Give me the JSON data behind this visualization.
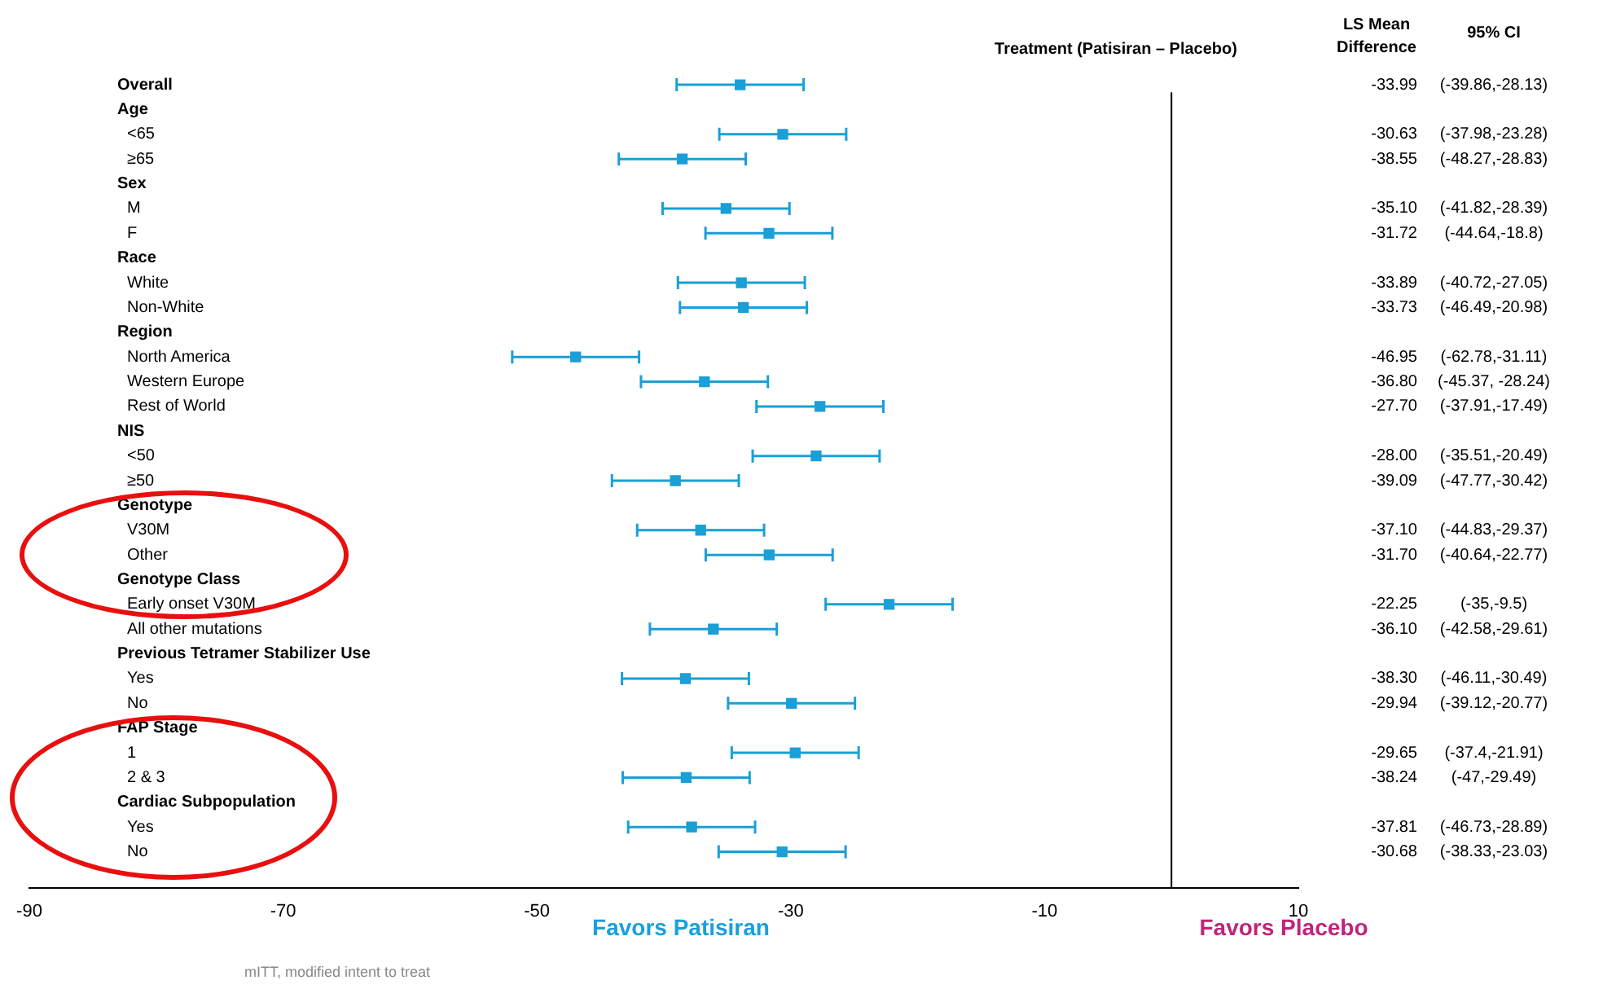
{
  "chart_data": {
    "type": "scatter",
    "orientation": "horizontal",
    "marker": "square",
    "color": "#1a9fd6",
    "legend": false,
    "grid": false,
    "categories": [
      "Overall",
      "Age",
      "<65",
      "≥65",
      "Sex",
      "M",
      "F",
      "Race",
      "White",
      "Non-White",
      "Region",
      "North America",
      "Western Europe",
      "Rest of World",
      "NIS",
      "<50",
      "≥50",
      "Genotype",
      "V30M",
      "Other",
      "Genotype Class",
      "Early onset V30M",
      "All other mutations",
      "Previous Tetramer Stabilizer Use",
      "Yes",
      "No",
      "FAP Stage",
      "1",
      "2 & 3",
      "Cardiac Subpopulation",
      "Yes",
      "No"
    ],
    "values": [
      -33.99,
      null,
      -30.63,
      -38.55,
      null,
      -35.1,
      -31.72,
      null,
      -33.89,
      -33.73,
      null,
      -46.95,
      -36.8,
      -27.7,
      null,
      -28.0,
      -39.09,
      null,
      -37.1,
      -31.7,
      null,
      -22.25,
      -36.1,
      null,
      -38.3,
      -29.94,
      null,
      -29.65,
      -38.24,
      null,
      -37.81,
      -30.68
    ],
    "errors": [
      5,
      null,
      5,
      5,
      null,
      5,
      5,
      null,
      5,
      5,
      null,
      5,
      5,
      5,
      null,
      5,
      5,
      null,
      5,
      5,
      null,
      5,
      5,
      null,
      5,
      5,
      null,
      5,
      5,
      null,
      5,
      5
    ],
    "value_labels": [
      "-33.99",
      null,
      "-30.63",
      "-38.55",
      null,
      "-35.10",
      "-31.72",
      null,
      "-33.89",
      "-33.73",
      null,
      "-46.95",
      "-36.80",
      "-27.70",
      null,
      "-28.00",
      "-39.09",
      null,
      "-37.10",
      "-31.70",
      null,
      "-22.25",
      "-36.10",
      null,
      "-38.30",
      "-29.94",
      null,
      "-29.65",
      "-38.24",
      null,
      "-37.81",
      "-30.68"
    ],
    "xlim": [
      -90,
      10
    ],
    "xticks": [
      -90,
      -70,
      -50,
      -30,
      -10,
      10
    ],
    "ref_lines": [
      {
        "axis": "x",
        "value": 0,
        "color": "#000000"
      }
    ],
    "annotations": [
      "Treatment (Patisiran – Placebo)",
      "LS Mean Difference",
      "95% CI",
      "Favors Patisiran",
      "Favors Placebo",
      "mITT, modified intent to treat",
      "(-39.86,-28.13)",
      "(-37.98,-23.28)",
      "(-48.27,-28.83)",
      "(-41.82,-28.39)",
      "(-44.64,-18.8)",
      "(-40.72,-27.05)",
      "(-46.49,-20.98)",
      "(-62.78,-31.11)",
      "(-45.37, -28.24)",
      "(-37.91,-17.49)",
      "(-35.51,-20.49)",
      "(-47.77,-30.42)",
      "(-44.83,-29.37)",
      "(-40.64,-22.77)",
      "(-35,-9.5)",
      "(-42.58,-29.61)",
      "(-46.11,-30.49)",
      "(-39.12,-20.77)",
      "(-37.4,-21.91)",
      "(-47,-29.49)",
      "(-46.73,-28.89)",
      "(-38.33,-23.03)"
    ]
  }
}
